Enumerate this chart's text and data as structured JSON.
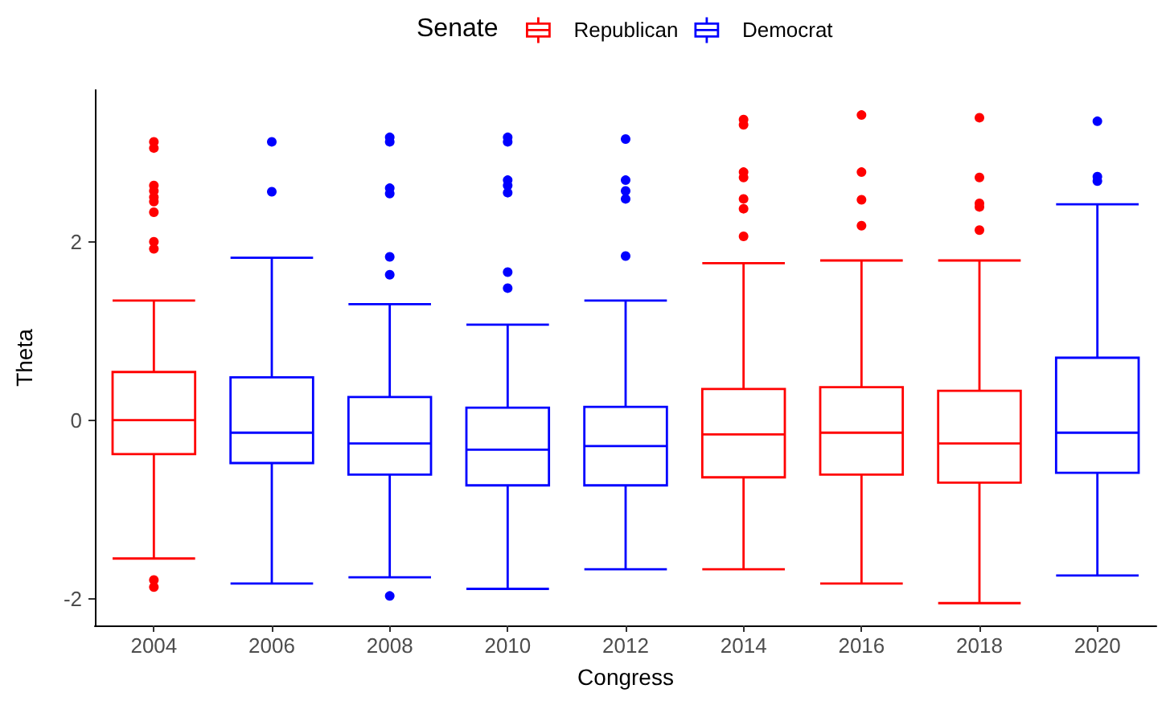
{
  "chart_data": {
    "type": "box",
    "xlabel": "Congress",
    "ylabel": "Theta",
    "legend_title": "Senate",
    "legend": "top",
    "categories": [
      "2004",
      "2006",
      "2008",
      "2010",
      "2012",
      "2014",
      "2016",
      "2018",
      "2020"
    ],
    "series": [
      {
        "name": "Republican",
        "color": "#ff0000",
        "boxes": [
          {
            "low": -1.55,
            "q1": -0.38,
            "median": 0.0,
            "q3": 0.54,
            "high": 1.34,
            "outliers": [
              3.12,
              3.05,
              2.63,
              2.57,
              2.5,
              2.45,
              2.33,
              2.0,
              1.92,
              -1.79,
              -1.87
            ]
          },
          null,
          null,
          null,
          null,
          {
            "low": -1.67,
            "q1": -0.64,
            "median": -0.16,
            "q3": 0.35,
            "high": 1.76,
            "outliers": [
              3.37,
              3.31,
              2.78,
              2.72,
              2.48,
              2.37,
              2.06
            ]
          },
          {
            "low": -1.83,
            "q1": -0.61,
            "median": -0.14,
            "q3": 0.37,
            "high": 1.79,
            "outliers": [
              3.42,
              2.78,
              2.47,
              2.18
            ]
          },
          {
            "low": -2.05,
            "q1": -0.7,
            "median": -0.26,
            "q3": 0.33,
            "high": 1.79,
            "outliers": [
              3.39,
              2.72,
              2.43,
              2.39,
              2.13
            ]
          },
          null
        ]
      },
      {
        "name": "Democrat",
        "color": "#0000ff",
        "boxes": [
          null,
          {
            "low": -1.83,
            "q1": -0.48,
            "median": -0.14,
            "q3": 0.48,
            "high": 1.82,
            "outliers": [
              3.12,
              2.56
            ]
          },
          {
            "low": -1.76,
            "q1": -0.61,
            "median": -0.26,
            "q3": 0.26,
            "high": 1.3,
            "outliers": [
              3.17,
              3.12,
              2.6,
              2.54,
              1.83,
              1.63,
              -1.97
            ]
          },
          {
            "low": -1.89,
            "q1": -0.73,
            "median": -0.33,
            "q3": 0.14,
            "high": 1.07,
            "outliers": [
              3.17,
              3.12,
              2.69,
              2.63,
              2.55,
              1.66,
              1.48
            ]
          },
          {
            "low": -1.67,
            "q1": -0.73,
            "median": -0.29,
            "q3": 0.15,
            "high": 1.34,
            "outliers": [
              3.15,
              2.69,
              2.57,
              2.48,
              1.84
            ]
          },
          null,
          null,
          null,
          {
            "low": -1.74,
            "q1": -0.59,
            "median": -0.14,
            "q3": 0.7,
            "high": 2.42,
            "outliers": [
              3.35,
              2.73,
              2.68
            ]
          }
        ]
      }
    ],
    "ylim": [
      -2.3,
      3.7
    ],
    "yticks": [
      -2,
      0,
      2
    ]
  }
}
